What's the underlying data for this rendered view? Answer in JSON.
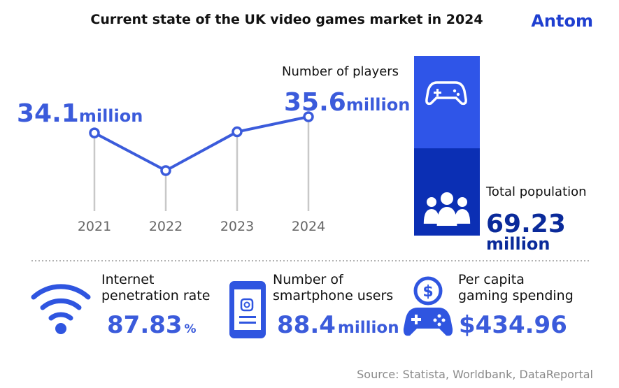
{
  "header": {
    "title": "Current state of the UK video games market in 2024",
    "logo": "Antom"
  },
  "chart_data": {
    "type": "line",
    "categories": [
      "2021",
      "2022",
      "2023",
      "2024"
    ],
    "values": [
      34.1,
      30.6,
      34.2,
      35.6
    ],
    "unit": "million",
    "color": "#3b5bdb",
    "players_label": "Number of players"
  },
  "population": {
    "label": "Total population",
    "value": 69.23,
    "unit": "million"
  },
  "stats": [
    {
      "label": [
        "Internet",
        "penetration rate"
      ],
      "value": 87.83,
      "unit": "%"
    },
    {
      "label": [
        "Number of",
        "smartphone users"
      ],
      "value": 88.4,
      "unit": "million"
    },
    {
      "label": [
        "Per capita",
        "gaming spending"
      ],
      "prefix": "$",
      "value": 434.96
    }
  ],
  "source": "Source: Statista, Worldbank, DataReportal"
}
